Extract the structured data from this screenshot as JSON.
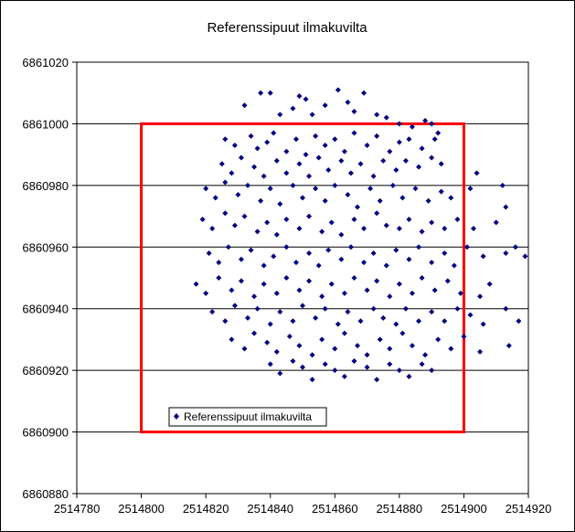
{
  "chart_data": {
    "type": "scatter",
    "title": "Referenssipuut ilmakuvilta",
    "xlabel": "",
    "ylabel": "",
    "xlim": [
      2514780,
      2514920
    ],
    "ylim": [
      6860880,
      6861020
    ],
    "x_ticks": [
      "2514780",
      "2514800",
      "2514820",
      "2514840",
      "2514860",
      "2514880",
      "2514900",
      "2514920"
    ],
    "y_ticks": [
      "6861020",
      "6861000",
      "6860980",
      "6860960",
      "6860940",
      "6860920",
      "6860900",
      "6860880"
    ],
    "grid": "horizontal",
    "legend": {
      "position": "inside-bottom-left",
      "entries": [
        "Referenssipuut ilmakuvilta"
      ]
    },
    "colors": {
      "marker": "#000080",
      "rectangle": "#ff0000",
      "grid": "#000000"
    },
    "rectangle": {
      "x": [
        2514800,
        2514900
      ],
      "y": [
        6860900,
        6861000
      ]
    },
    "series": [
      {
        "name": "Referenssipuut ilmakuvilta",
        "marker": "diamond",
        "points": [
          [
            2514832,
            6861006
          ],
          [
            2514837,
            6861010
          ],
          [
            2514840,
            6861010
          ],
          [
            2514843,
            6861003
          ],
          [
            2514847,
            6861005
          ],
          [
            2514849,
            6861009
          ],
          [
            2514851,
            6861008
          ],
          [
            2514853,
            6861003
          ],
          [
            2514857,
            6861006
          ],
          [
            2514861,
            6861011
          ],
          [
            2514864,
            6861007
          ],
          [
            2514866,
            6861004
          ],
          [
            2514869,
            6861010
          ],
          [
            2514873,
            6861003
          ],
          [
            2514876,
            6861002
          ],
          [
            2514880,
            6861000
          ],
          [
            2514884,
            6860999
          ],
          [
            2514888,
            6861001
          ],
          [
            2514890,
            6861000
          ],
          [
            2514892,
            6860997
          ],
          [
            2514826,
            6860995
          ],
          [
            2514829,
            6860993
          ],
          [
            2514834,
            6860996
          ],
          [
            2514836,
            6860992
          ],
          [
            2514839,
            6860994
          ],
          [
            2514841,
            6860997
          ],
          [
            2514845,
            6860991
          ],
          [
            2514848,
            6860995
          ],
          [
            2514851,
            6860990
          ],
          [
            2514854,
            6860996
          ],
          [
            2514857,
            6860993
          ],
          [
            2514860,
            6860995
          ],
          [
            2514863,
            6860991
          ],
          [
            2514866,
            6860997
          ],
          [
            2514870,
            6860993
          ],
          [
            2514873,
            6860996
          ],
          [
            2514877,
            6860991
          ],
          [
            2514880,
            6860994
          ],
          [
            2514883,
            6860995
          ],
          [
            2514887,
            6860992
          ],
          [
            2514891,
            6860995
          ],
          [
            2514825,
            6860987
          ],
          [
            2514828,
            6860984
          ],
          [
            2514831,
            6860989
          ],
          [
            2514835,
            6860986
          ],
          [
            2514838,
            6860983
          ],
          [
            2514842,
            6860988
          ],
          [
            2514845,
            6860984
          ],
          [
            2514849,
            6860987
          ],
          [
            2514852,
            6860983
          ],
          [
            2514855,
            6860989
          ],
          [
            2514858,
            6860985
          ],
          [
            2514862,
            6860988
          ],
          [
            2514865,
            6860984
          ],
          [
            2514868,
            6860987
          ],
          [
            2514872,
            6860983
          ],
          [
            2514875,
            6860988
          ],
          [
            2514879,
            6860985
          ],
          [
            2514882,
            6860988
          ],
          [
            2514886,
            6860986
          ],
          [
            2514890,
            6860989
          ],
          [
            2514893,
            6860987
          ],
          [
            2514820,
            6860979
          ],
          [
            2514823,
            6860976
          ],
          [
            2514826,
            6860981
          ],
          [
            2514830,
            6860977
          ],
          [
            2514833,
            6860980
          ],
          [
            2514837,
            6860975
          ],
          [
            2514840,
            6860979
          ],
          [
            2514843,
            6860974
          ],
          [
            2514847,
            6860980
          ],
          [
            2514850,
            6860976
          ],
          [
            2514854,
            6860979
          ],
          [
            2514857,
            6860975
          ],
          [
            2514860,
            6860980
          ],
          [
            2514864,
            6860977
          ],
          [
            2514867,
            6860973
          ],
          [
            2514871,
            6860979
          ],
          [
            2514874,
            6860975
          ],
          [
            2514878,
            6860980
          ],
          [
            2514881,
            6860976
          ],
          [
            2514885,
            6860979
          ],
          [
            2514889,
            6860975
          ],
          [
            2514893,
            6860978
          ],
          [
            2514896,
            6860976
          ],
          [
            2514902,
            6860979
          ],
          [
            2514904,
            6860984
          ],
          [
            2514912,
            6860980
          ],
          [
            2514819,
            6860969
          ],
          [
            2514822,
            6860966
          ],
          [
            2514826,
            6860971
          ],
          [
            2514829,
            6860967
          ],
          [
            2514832,
            6860970
          ],
          [
            2514836,
            6860965
          ],
          [
            2514839,
            6860968
          ],
          [
            2514842,
            6860964
          ],
          [
            2514845,
            6860969
          ],
          [
            2514849,
            6860966
          ],
          [
            2514852,
            6860970
          ],
          [
            2514856,
            6860965
          ],
          [
            2514859,
            6860968
          ],
          [
            2514862,
            6860964
          ],
          [
            2514866,
            6860969
          ],
          [
            2514869,
            6860966
          ],
          [
            2514873,
            6860971
          ],
          [
            2514876,
            6860967
          ],
          [
            2514880,
            6860966
          ],
          [
            2514883,
            6860969
          ],
          [
            2514887,
            6860965
          ],
          [
            2514890,
            6860968
          ],
          [
            2514894,
            6860966
          ],
          [
            2514898,
            6860969
          ],
          [
            2514903,
            6860966
          ],
          [
            2514910,
            6860968
          ],
          [
            2514913,
            6860973
          ],
          [
            2514821,
            6860958
          ],
          [
            2514824,
            6860955
          ],
          [
            2514827,
            6860960
          ],
          [
            2514831,
            6860956
          ],
          [
            2514834,
            6860959
          ],
          [
            2514838,
            6860954
          ],
          [
            2514841,
            6860957
          ],
          [
            2514845,
            6860960
          ],
          [
            2514848,
            6860955
          ],
          [
            2514852,
            6860958
          ],
          [
            2514855,
            6860954
          ],
          [
            2514858,
            6860959
          ],
          [
            2514862,
            6860956
          ],
          [
            2514865,
            6860960
          ],
          [
            2514869,
            6860955
          ],
          [
            2514872,
            6860958
          ],
          [
            2514876,
            6860954
          ],
          [
            2514879,
            6860959
          ],
          [
            2514883,
            6860956
          ],
          [
            2514886,
            6860960
          ],
          [
            2514890,
            6860955
          ],
          [
            2514894,
            6860958
          ],
          [
            2514897,
            6860954
          ],
          [
            2514901,
            6860960
          ],
          [
            2514906,
            6860957
          ],
          [
            2514913,
            6860958
          ],
          [
            2514916,
            6860960
          ],
          [
            2514919,
            6860957
          ],
          [
            2514817,
            6860948
          ],
          [
            2514820,
            6860945
          ],
          [
            2514824,
            6860950
          ],
          [
            2514828,
            6860946
          ],
          [
            2514831,
            6860949
          ],
          [
            2514835,
            6860944
          ],
          [
            2514838,
            6860948
          ],
          [
            2514842,
            6860945
          ],
          [
            2514845,
            6860950
          ],
          [
            2514849,
            6860946
          ],
          [
            2514852,
            6860949
          ],
          [
            2514856,
            6860944
          ],
          [
            2514859,
            6860948
          ],
          [
            2514863,
            6860945
          ],
          [
            2514866,
            6860950
          ],
          [
            2514870,
            6860946
          ],
          [
            2514873,
            6860949
          ],
          [
            2514877,
            6860944
          ],
          [
            2514880,
            6860948
          ],
          [
            2514884,
            6860945
          ],
          [
            2514887,
            6860950
          ],
          [
            2514891,
            6860946
          ],
          [
            2514895,
            6860949
          ],
          [
            2514899,
            6860945
          ],
          [
            2514905,
            6860944
          ],
          [
            2514908,
            6860948
          ],
          [
            2514822,
            6860939
          ],
          [
            2514826,
            6860936
          ],
          [
            2514829,
            6860941
          ],
          [
            2514833,
            6860937
          ],
          [
            2514836,
            6860940
          ],
          [
            2514840,
            6860935
          ],
          [
            2514843,
            6860939
          ],
          [
            2514847,
            6860936
          ],
          [
            2514850,
            6860941
          ],
          [
            2514854,
            6860937
          ],
          [
            2514857,
            6860940
          ],
          [
            2514861,
            6860935
          ],
          [
            2514864,
            6860939
          ],
          [
            2514868,
            6860936
          ],
          [
            2514872,
            6860940
          ],
          [
            2514875,
            6860937
          ],
          [
            2514879,
            6860935
          ],
          [
            2514882,
            6860940
          ],
          [
            2514886,
            6860936
          ],
          [
            2514890,
            6860939
          ],
          [
            2514894,
            6860936
          ],
          [
            2514898,
            6860940
          ],
          [
            2514902,
            6860938
          ],
          [
            2514906,
            6860935
          ],
          [
            2514913,
            6860940
          ],
          [
            2514917,
            6860936
          ],
          [
            2514828,
            6860930
          ],
          [
            2514832,
            6860927
          ],
          [
            2514835,
            6860932
          ],
          [
            2514839,
            6860929
          ],
          [
            2514842,
            6860926
          ],
          [
            2514846,
            6860931
          ],
          [
            2514849,
            6860928
          ],
          [
            2514853,
            6860925
          ],
          [
            2514856,
            6860930
          ],
          [
            2514860,
            6860927
          ],
          [
            2514863,
            6860932
          ],
          [
            2514867,
            6860928
          ],
          [
            2514870,
            6860925
          ],
          [
            2514874,
            6860930
          ],
          [
            2514877,
            6860927
          ],
          [
            2514881,
            6860932
          ],
          [
            2514884,
            6860928
          ],
          [
            2514888,
            6860925
          ],
          [
            2514892,
            6860930
          ],
          [
            2514896,
            6860927
          ],
          [
            2514900,
            6860931
          ],
          [
            2514905,
            6860926
          ],
          [
            2514914,
            6860928
          ],
          [
            2514840,
            6860922
          ],
          [
            2514843,
            6860919
          ],
          [
            2514847,
            6860923
          ],
          [
            2514850,
            6860921
          ],
          [
            2514853,
            6860917
          ],
          [
            2514857,
            6860922
          ],
          [
            2514860,
            6860920
          ],
          [
            2514863,
            6860918
          ],
          [
            2514866,
            6860923
          ],
          [
            2514870,
            6860921
          ],
          [
            2514873,
            6860917
          ],
          [
            2514877,
            6860922
          ],
          [
            2514880,
            6860920
          ],
          [
            2514883,
            6860918
          ],
          [
            2514887,
            6860922
          ],
          [
            2514890,
            6860920
          ]
        ]
      }
    ]
  }
}
